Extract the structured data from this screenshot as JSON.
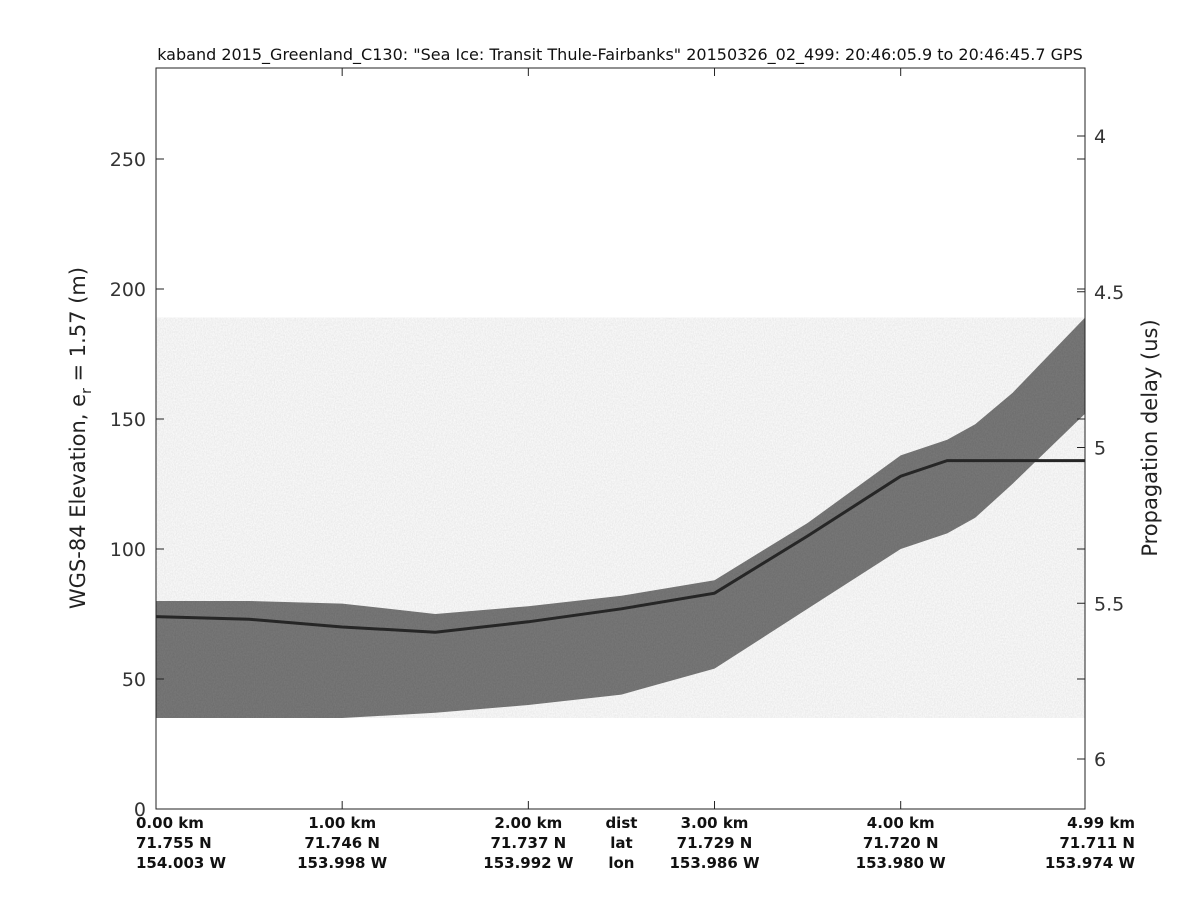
{
  "chart_data": {
    "type": "heatmap",
    "title": "kaband 2015_Greenland_C130: \"Sea Ice: Transit Thule-Fairbanks\"  20150326_02_499: 20:46:05.9 to 20:46:45.7 GPS",
    "ylabel_main": "WGS-84 Elevation, e",
    "ylabel_sub": "r",
    "ylabel_tail": " = 1.57 (m)",
    "ylabel_right": "Propagation delay (us)",
    "ylim": [
      0,
      285
    ],
    "yticks": [
      0,
      50,
      100,
      150,
      200,
      250
    ],
    "yticks_right": [
      "4",
      "4.5",
      "5",
      "5.5",
      "6"
    ],
    "yticks_right_values": [
      4,
      4.5,
      5,
      5.5,
      6
    ],
    "xlim_km": [
      0,
      4.99
    ],
    "x_rows": [
      "dist",
      "lat",
      "lon"
    ],
    "xticks": [
      {
        "km": 0.0,
        "dist": "0.00 km",
        "lat": "71.755 N",
        "lon": "154.003 W"
      },
      {
        "km": 1.0,
        "dist": "1.00 km",
        "lat": "71.746 N",
        "lon": "153.998 W"
      },
      {
        "km": 2.0,
        "dist": "2.00 km",
        "lat": "71.737 N",
        "lon": "153.992 W"
      },
      {
        "km": 3.0,
        "dist": "3.00 km",
        "lat": "71.729 N",
        "lon": "153.986 W"
      },
      {
        "km": 4.0,
        "dist": "4.00 km",
        "lat": "71.720 N",
        "lon": "153.980 W"
      },
      {
        "km": 4.99,
        "dist": "4.99 km",
        "lat": "71.711 N",
        "lon": "153.974 W"
      }
    ],
    "surface": {
      "km": [
        0.0,
        0.5,
        1.0,
        1.5,
        2.0,
        2.5,
        3.0,
        3.5,
        4.0,
        4.25,
        4.4,
        4.6,
        4.99
      ],
      "top": [
        80,
        80,
        79,
        75,
        78,
        82,
        88,
        110,
        136,
        142,
        148,
        160,
        189
      ],
      "line": [
        74,
        73,
        70,
        68,
        72,
        77,
        83,
        105,
        128,
        134,
        134,
        134,
        134
      ],
      "bottom": [
        35,
        35,
        35,
        37,
        40,
        44,
        54,
        77,
        100,
        106,
        112,
        125,
        152
      ]
    },
    "colormap": "gray"
  }
}
